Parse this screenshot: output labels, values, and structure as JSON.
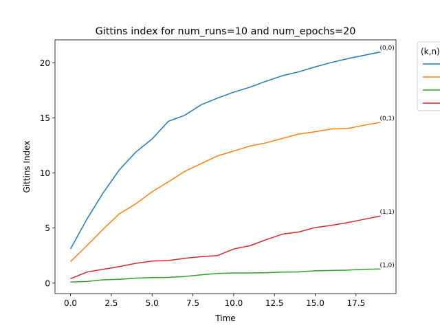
{
  "chart_data": {
    "type": "line",
    "title": "Gittins index for num_runs=10 and num_epochs=20",
    "xlabel": "Time",
    "ylabel": "Gittins Index",
    "xlim": [
      -0.95,
      19.95
    ],
    "ylim": [
      -0.95,
      22.1
    ],
    "xticks": [
      0,
      2.5,
      5,
      7.5,
      10,
      12.5,
      15,
      17.5
    ],
    "xtick_labels": [
      "0.0",
      "2.5",
      "5.0",
      "7.5",
      "10.0",
      "12.5",
      "15.0",
      "17.5"
    ],
    "yticks": [
      0,
      5,
      10,
      15,
      20
    ],
    "ytick_labels": [
      "0",
      "5",
      "10",
      "15",
      "20"
    ],
    "grid": false,
    "legend": {
      "title": "(k,n)",
      "placement": "outside-right"
    },
    "x": [
      0,
      1,
      2,
      3,
      4,
      5,
      6,
      7,
      8,
      9,
      10,
      11,
      12,
      13,
      14,
      15,
      16,
      17,
      18,
      19
    ],
    "series": [
      {
        "label": "(0,0)",
        "color": "#1f77b4",
        "values": [
          3.1,
          5.8,
          8.2,
          10.3,
          11.9,
          13.1,
          14.7,
          15.25,
          16.2,
          16.8,
          17.35,
          17.8,
          18.35,
          18.85,
          19.2,
          19.65,
          20.05,
          20.4,
          20.7,
          21.0
        ]
      },
      {
        "label": "(0,1)",
        "color": "#ff7f0e",
        "values": [
          1.95,
          3.4,
          4.9,
          6.3,
          7.2,
          8.3,
          9.2,
          10.15,
          10.85,
          11.55,
          12.0,
          12.45,
          12.75,
          13.15,
          13.55,
          13.75,
          14.0,
          14.05,
          14.35,
          14.6
        ]
      },
      {
        "label": "(1,0)",
        "color": "#2ca02c",
        "values": [
          0.1,
          0.15,
          0.3,
          0.35,
          0.45,
          0.5,
          0.52,
          0.6,
          0.75,
          0.88,
          0.92,
          0.92,
          0.95,
          1.0,
          1.02,
          1.12,
          1.15,
          1.18,
          1.25,
          1.28
        ]
      },
      {
        "label": "(1,1)",
        "color": "#d62728",
        "values": [
          0.4,
          1.0,
          1.25,
          1.5,
          1.8,
          2.0,
          2.05,
          2.25,
          2.4,
          2.5,
          3.1,
          3.4,
          3.95,
          4.45,
          4.65,
          5.05,
          5.25,
          5.5,
          5.8,
          6.1
        ]
      }
    ]
  }
}
